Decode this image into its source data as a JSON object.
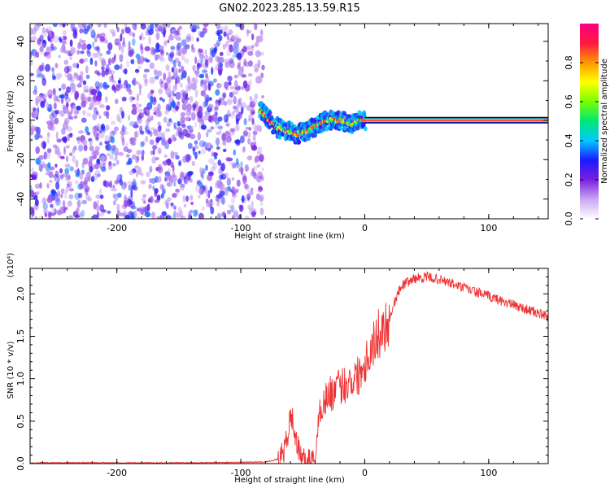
{
  "title": "GN02.2023.285.13.59.R15",
  "chart_data": [
    {
      "type": "heatmap",
      "title": "",
      "xlabel": "Height of straight line (km)",
      "ylabel": "Frequency (Hz)",
      "xlim": [
        -270,
        148
      ],
      "ylim": [
        -50,
        49
      ],
      "xticks": [
        "-200",
        "-100",
        "0",
        "100"
      ],
      "yticks": [
        "40",
        "20",
        "0",
        "-20",
        "-40"
      ],
      "noise_region_x": [
        -270,
        -88
      ],
      "signal_track": [
        {
          "x": -85,
          "y": 5
        },
        {
          "x": -80,
          "y": 2
        },
        {
          "x": -75,
          "y": -2
        },
        {
          "x": -70,
          "y": -4
        },
        {
          "x": -65,
          "y": -5
        },
        {
          "x": -60,
          "y": -6
        },
        {
          "x": -55,
          "y": -7
        },
        {
          "x": -50,
          "y": -6
        },
        {
          "x": -45,
          "y": -5
        },
        {
          "x": -40,
          "y": -3
        },
        {
          "x": -35,
          "y": -1
        },
        {
          "x": -30,
          "y": 0
        },
        {
          "x": -25,
          "y": 0
        },
        {
          "x": -20,
          "y": 0
        },
        {
          "x": -15,
          "y": -1
        },
        {
          "x": -10,
          "y": -2
        },
        {
          "x": -5,
          "y": 0
        },
        {
          "x": 0,
          "y": 0
        }
      ],
      "constant_line": {
        "x_start": 0,
        "x_end": 148,
        "y": 0
      },
      "colorbar": {
        "label": "Normalized spectral amplitude",
        "range": [
          0,
          1
        ],
        "ticks": [
          "0.0",
          "0.2",
          "0.4",
          "0.6",
          "0.8"
        ],
        "colors": [
          "#ffffff",
          "#c9a6f2",
          "#7b1fe0",
          "#1a1aff",
          "#00c8ff",
          "#00e676",
          "#76ff03",
          "#ffff00",
          "#ff9800",
          "#ff1744",
          "#ff0080"
        ]
      }
    },
    {
      "type": "line",
      "title": "",
      "xlabel": "Height of straight line (km)",
      "ylabel": "SNR (10 * v/v)",
      "scale_label": "(x10⁴)",
      "xlim": [
        -270,
        148
      ],
      "ylim": [
        0,
        2.3
      ],
      "xticks": [
        "-200",
        "-100",
        "0",
        "100"
      ],
      "yticks": [
        "0.0",
        "0.5",
        "1.0",
        "1.5",
        "2.0"
      ],
      "color": "#ee3333",
      "x": [
        -270,
        -150,
        -100,
        -80,
        -70,
        -65,
        -62,
        -60,
        -58,
        -55,
        -52,
        -50,
        -45,
        -40,
        -38,
        -35,
        -32,
        -30,
        -25,
        -20,
        -15,
        -10,
        -5,
        0,
        5,
        10,
        15,
        20,
        25,
        30,
        40,
        50,
        60,
        70,
        80,
        90,
        100,
        110,
        120,
        130,
        140,
        148
      ],
      "y": [
        0.01,
        0.01,
        0.015,
        0.02,
        0.05,
        0.15,
        0.35,
        0.55,
        0.5,
        0.25,
        0.1,
        0.06,
        0.05,
        0.06,
        0.4,
        0.7,
        0.75,
        0.8,
        0.85,
        0.9,
        0.95,
        1.0,
        1.05,
        1.2,
        1.35,
        1.5,
        1.6,
        1.7,
        1.95,
        2.1,
        2.18,
        2.2,
        2.17,
        2.12,
        2.07,
        2.02,
        1.97,
        1.92,
        1.87,
        1.82,
        1.77,
        1.72
      ]
    }
  ]
}
